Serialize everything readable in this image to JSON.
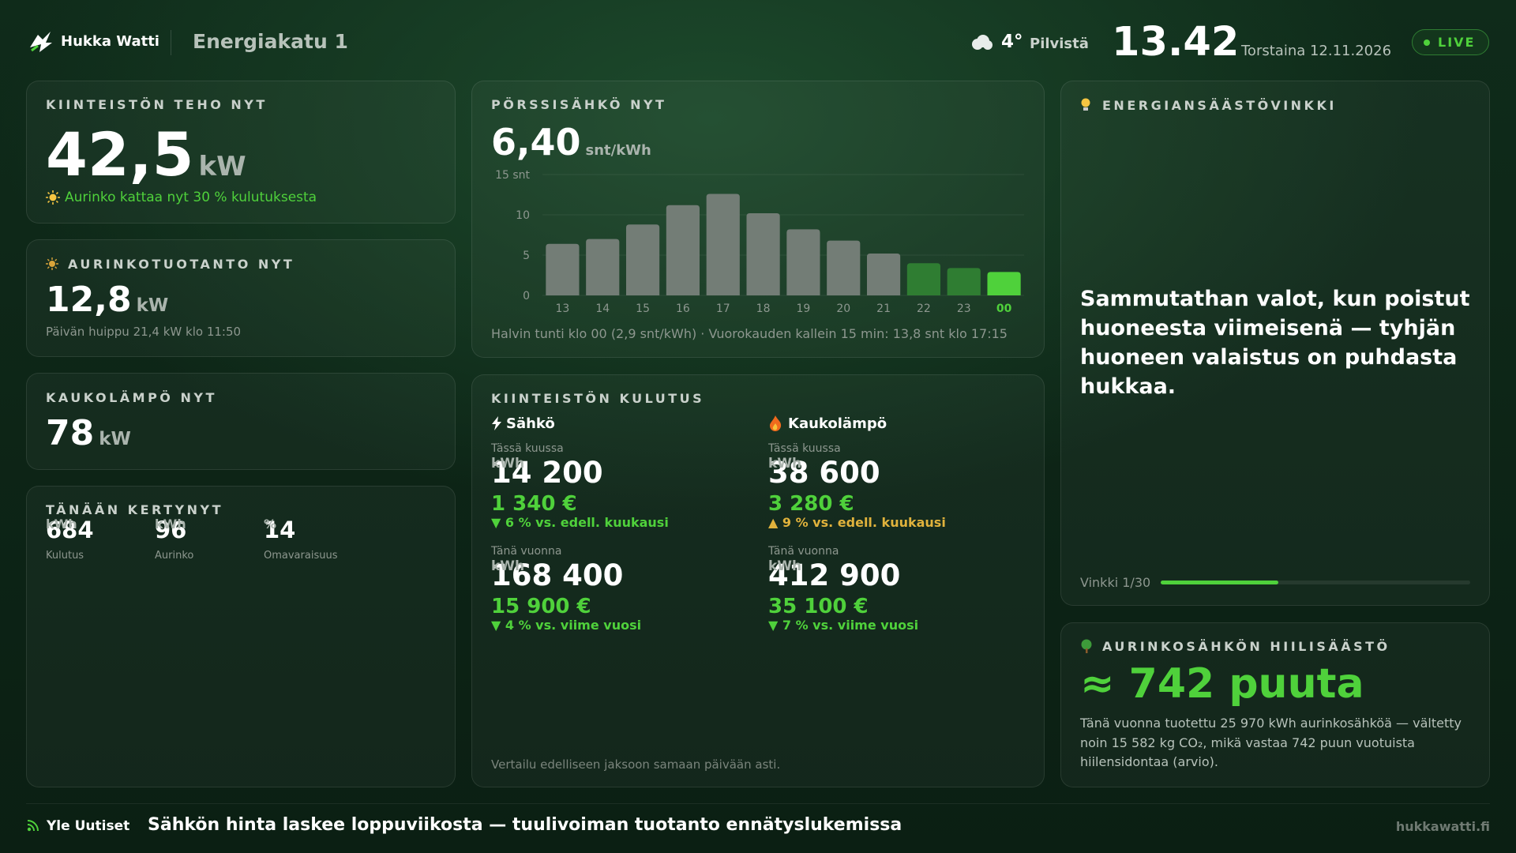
{
  "header": {
    "brand": "Hukka Watti",
    "location": "Energiakatu 1",
    "temperature": "4°",
    "condition": "Pilvistä",
    "time": "13.42",
    "date": "Torstaina 12.11.2026",
    "status": "LIVE"
  },
  "power_now": {
    "title": "KIINTEISTÖN TEHO NYT",
    "value": "42,5",
    "unit": "kW",
    "note": "Aurinko kattaa nyt 30 % kulutuksesta"
  },
  "solar_now": {
    "title": "AURINKOTUOTANTO NYT",
    "value": "12,8",
    "unit": "kW",
    "note": "Päivän huippu 21,4 kW klo 11:50"
  },
  "district_heat_now": {
    "title": "KAUKOLÄMPÖ NYT",
    "value": "78",
    "unit": "kW"
  },
  "today": {
    "title": "TÄNÄÄN KERTYNYT",
    "stats": [
      {
        "value": "684",
        "unit": "kWh",
        "label": "Kulutus"
      },
      {
        "value": "96",
        "unit": "kWh",
        "label": "Aurinko"
      },
      {
        "value": "14",
        "unit": "%",
        "label": "Omavaraisuus"
      }
    ]
  },
  "price_now": {
    "title": "PÖRSSISÄHKÖ NYT",
    "value": "6,40",
    "unit": "snt/kWh",
    "caption": "Halvin tunti klo 00 (2,9 snt/kWh) · Vuorokauden kallein 15 min: 13,8 snt klo 17:15"
  },
  "chart_data": {
    "type": "bar",
    "categories": [
      "13",
      "14",
      "15",
      "16",
      "17",
      "18",
      "19",
      "20",
      "21",
      "22",
      "23",
      "00"
    ],
    "values": [
      6.4,
      7.0,
      8.8,
      11.2,
      12.6,
      10.2,
      8.2,
      6.8,
      5.2,
      4.0,
      3.4,
      2.9
    ],
    "colors": [
      "#737d76",
      "#737d76",
      "#737d76",
      "#737d76",
      "#737d76",
      "#737d76",
      "#737d76",
      "#737d76",
      "#737d76",
      "#2f7d32",
      "#2f7d32",
      "#4fd13b"
    ],
    "ylim": [
      0,
      15
    ],
    "yticks": [
      0,
      5,
      10,
      {
        "value": 15,
        "label": "15 snt"
      }
    ],
    "grid": true
  },
  "consumption": {
    "title": "KIINTEISTÖN KULUTUS",
    "note": "Vertailu edelliseen jaksoon samaan päivään asti.",
    "columns": [
      {
        "name": "Sähkö",
        "periods": [
          {
            "label": "Tässä kuussa",
            "value": "14 200",
            "unit": "kWh",
            "cost": "1 340 €",
            "change": "▼ 6 % vs. edell. kuukausi"
          },
          {
            "label": "Tänä vuonna",
            "value": "168 400",
            "unit": "kWh",
            "cost": "15 900 €",
            "change": "▼ 4 % vs. viime vuosi"
          }
        ]
      },
      {
        "name": "Kaukolämpö",
        "periods": [
          {
            "label": "Tässä kuussa",
            "value": "38 600",
            "unit": "kWh",
            "cost": "3 280 €",
            "change": "▲ 9 % vs. edell. kuukausi"
          },
          {
            "label": "Tänä vuonna",
            "value": "412 900",
            "unit": "kWh",
            "cost": "35 100 €",
            "change": "▼ 7 % vs. viime vuosi"
          }
        ]
      }
    ]
  },
  "tip": {
    "title": "ENERGIANSÄÄSTÖVINKKI",
    "text": "Sammutathan valot, kun poistut huoneesta viimeisenä — tyhjän huoneen valaistus on puhdasta hukkaa.",
    "counter": "Vinkki 1/30"
  },
  "carbon": {
    "title": "AURINKOSÄHKÖN HIILISÄÄSTÖ",
    "value": "≈ 742 puuta",
    "text": "Tänä vuonna tuotettu 25 970 kWh aurinkosähköä — vältetty noin 15 582 kg CO₂, mikä vastaa 742 puun vuotuista hiilensidontaa (arvio)."
  },
  "footer": {
    "source": "Yle Uutiset",
    "headline": "Sähkön hinta laskee loppuviikosta — tuulivoiman tuotanto ennätyslukemissa",
    "site": "hukkawatti.fi"
  }
}
